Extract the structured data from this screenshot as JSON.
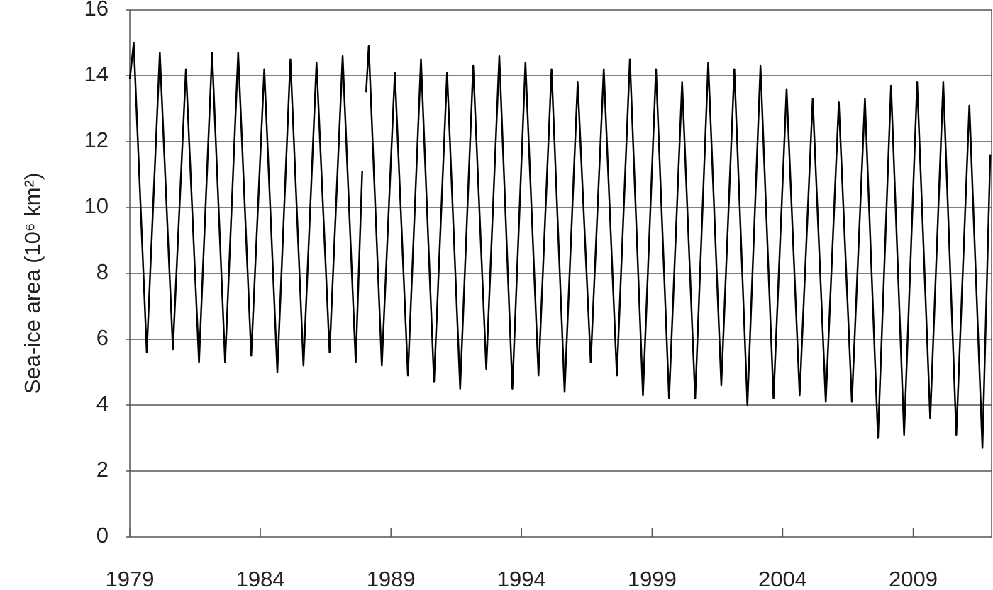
{
  "chart_data": {
    "type": "line",
    "y_label": "Sea-ice area (10⁶ km²)",
    "x": [
      1979.0,
      1979.15,
      1979.65,
      1980.15,
      1980.65,
      1981.15,
      1981.65,
      1982.15,
      1982.65,
      1983.15,
      1983.65,
      1984.15,
      1984.65,
      1985.15,
      1985.65,
      1986.15,
      1986.65,
      1987.15,
      1987.65,
      1987.9,
      1988.0,
      1988.05,
      1988.15,
      1988.65,
      1989.15,
      1989.65,
      1990.15,
      1990.65,
      1991.15,
      1991.65,
      1992.15,
      1992.65,
      1993.15,
      1993.65,
      1994.15,
      1994.65,
      1995.15,
      1995.65,
      1996.15,
      1996.65,
      1997.15,
      1997.65,
      1998.15,
      1998.65,
      1999.15,
      1999.65,
      2000.15,
      2000.65,
      2001.15,
      2001.65,
      2002.15,
      2002.65,
      2003.15,
      2003.65,
      2004.15,
      2004.65,
      2005.15,
      2005.65,
      2006.15,
      2006.65,
      2007.15,
      2007.65,
      2008.15,
      2008.65,
      2009.15,
      2009.65,
      2010.15,
      2010.65,
      2011.15,
      2011.65,
      2011.95
    ],
    "values": [
      13.9,
      15.0,
      5.6,
      14.7,
      5.7,
      14.2,
      5.3,
      14.7,
      5.3,
      14.7,
      5.5,
      14.2,
      5.0,
      14.5,
      5.2,
      14.4,
      5.6,
      14.6,
      5.3,
      11.1,
      null,
      13.5,
      14.9,
      5.2,
      14.1,
      4.9,
      14.5,
      4.7,
      14.1,
      4.5,
      14.3,
      5.1,
      14.6,
      4.5,
      14.4,
      4.9,
      14.2,
      4.4,
      13.8,
      5.3,
      14.2,
      4.9,
      14.5,
      4.3,
      14.2,
      4.2,
      13.8,
      4.2,
      14.4,
      4.6,
      14.2,
      4.0,
      14.3,
      4.2,
      13.6,
      4.3,
      13.3,
      4.1,
      13.2,
      4.1,
      13.3,
      3.0,
      13.7,
      3.1,
      13.8,
      3.6,
      13.8,
      3.1,
      13.1,
      2.7,
      11.6
    ],
    "color": "#000000",
    "xlim": [
      1979,
      2012
    ],
    "xticks": [
      1979,
      1984,
      1989,
      1994,
      1999,
      2004,
      2009
    ],
    "ylim": [
      0,
      16
    ],
    "yticks": [
      0,
      2,
      4,
      6,
      8,
      10,
      12,
      14,
      16
    ],
    "grid": true
  }
}
